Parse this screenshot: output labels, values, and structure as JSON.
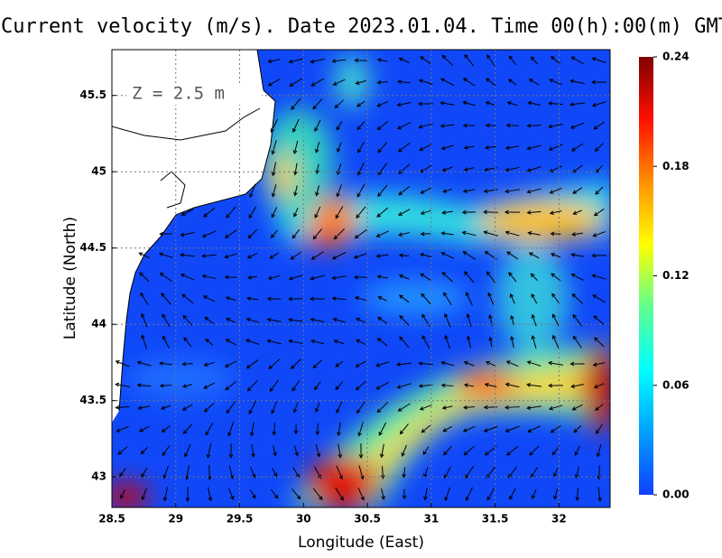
{
  "chart_data": {
    "type": "vector-field",
    "title": "Current velocity (m/s). Date 2023.01.04. Time 00(h):00(m) GMT",
    "annotation": "Z = 2.5 m",
    "xlabel": "Longitude (East)",
    "ylabel": "Latitude (North)",
    "xlim": [
      28.5,
      32.4
    ],
    "ylim": [
      42.8,
      45.8
    ],
    "xticks": [
      28.5,
      29,
      29.5,
      30,
      30.5,
      31,
      31.5,
      32
    ],
    "yticks": [
      43,
      43.5,
      44,
      44.5,
      45,
      45.5
    ],
    "grid": true,
    "colorbar": {
      "lim": [
        0,
        0.24
      ],
      "ticks": [
        {
          "value": 0,
          "label": "0.00"
        },
        0.06,
        0.12,
        0.18,
        0.24
      ],
      "colors": [
        "#1040ff",
        "#00a0ff",
        "#00ffff",
        "#60ff90",
        "#ffff00",
        "#ff9000",
        "#ff1000",
        "#800000"
      ]
    }
  }
}
